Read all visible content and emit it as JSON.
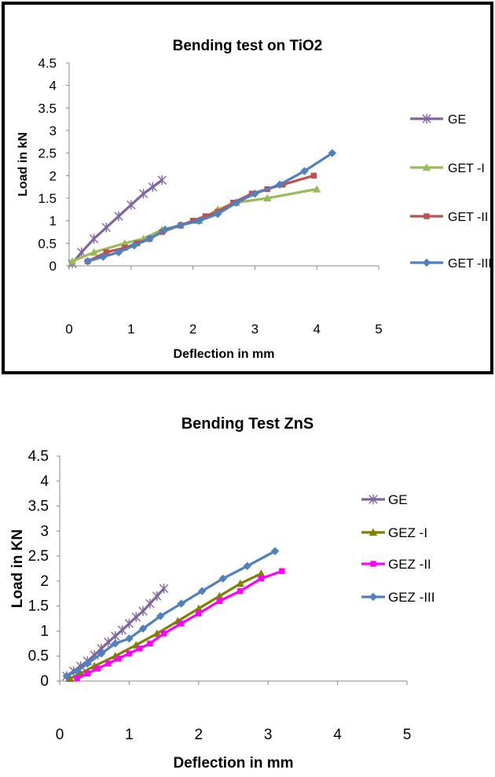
{
  "chart_data": [
    {
      "type": "line",
      "title": "Bending test on TiO2",
      "xlabel": "Deflection in mm",
      "ylabel": "Load in kN",
      "xlim": [
        0,
        5
      ],
      "ylim": [
        0,
        4.5
      ],
      "xticks": [
        "0",
        "1",
        "2",
        "3",
        "4",
        "5"
      ],
      "yticks": [
        "0",
        "0.5",
        "1",
        "1.5",
        "2",
        "2.5",
        "3",
        "3.5",
        "4",
        "4.5"
      ],
      "grid": false,
      "legend_position": "right",
      "series": [
        {
          "name": "GE",
          "color": "#8064a2",
          "marker": "x",
          "x": [
            0.05,
            0.2,
            0.4,
            0.6,
            0.8,
            1.0,
            1.2,
            1.35,
            1.5
          ],
          "y": [
            0.05,
            0.3,
            0.6,
            0.85,
            1.1,
            1.35,
            1.6,
            1.75,
            1.9
          ]
        },
        {
          "name": "GET -I",
          "color": "#9bbb59",
          "marker": "triangle",
          "x": [
            0.05,
            0.4,
            0.9,
            1.2,
            1.5,
            1.8,
            2.1,
            2.4,
            2.7,
            3.2,
            4.0
          ],
          "y": [
            0.1,
            0.3,
            0.5,
            0.6,
            0.8,
            0.9,
            1.0,
            1.25,
            1.4,
            1.5,
            1.7
          ]
        },
        {
          "name": "GET -II",
          "color": "#c0504d",
          "marker": "square",
          "x": [
            0.3,
            0.6,
            0.9,
            1.1,
            1.3,
            1.5,
            1.8,
            2.0,
            2.2,
            2.4,
            2.65,
            2.95,
            3.2,
            3.45,
            3.95
          ],
          "y": [
            0.1,
            0.3,
            0.4,
            0.5,
            0.6,
            0.75,
            0.9,
            1.0,
            1.1,
            1.2,
            1.4,
            1.6,
            1.7,
            1.8,
            2.0
          ]
        },
        {
          "name": "GET -III",
          "color": "#4f81be",
          "marker": "diamond",
          "x": [
            0.3,
            0.55,
            0.8,
            1.05,
            1.3,
            1.55,
            1.8,
            2.1,
            2.4,
            2.7,
            3.0,
            3.4,
            3.8,
            4.25
          ],
          "y": [
            0.1,
            0.2,
            0.3,
            0.45,
            0.6,
            0.8,
            0.9,
            1.0,
            1.15,
            1.4,
            1.6,
            1.8,
            2.1,
            2.5
          ]
        }
      ]
    },
    {
      "type": "line",
      "title": "Bending Test ZnS",
      "xlabel": "Deflection in mm",
      "ylabel": "Load in KN",
      "xlim": [
        0,
        5
      ],
      "ylim": [
        0,
        4.5
      ],
      "xticks": [
        "0",
        "1",
        "2",
        "3",
        "4",
        "5"
      ],
      "yticks": [
        "0",
        "0.5",
        "1",
        "1.5",
        "2",
        "2.5",
        "3",
        "3.5",
        "4",
        "4.5"
      ],
      "grid": false,
      "legend_position": "right",
      "series": [
        {
          "name": "GE",
          "color": "#8064a2",
          "marker": "x",
          "x": [
            0.1,
            0.2,
            0.3,
            0.4,
            0.5,
            0.6,
            0.7,
            0.8,
            0.9,
            1.0,
            1.1,
            1.2,
            1.3,
            1.4,
            1.5
          ],
          "y": [
            0.1,
            0.2,
            0.3,
            0.4,
            0.52,
            0.65,
            0.78,
            0.9,
            1.02,
            1.15,
            1.28,
            1.4,
            1.55,
            1.7,
            1.85
          ]
        },
        {
          "name": "GEZ -I",
          "color": "#7f7f00",
          "marker": "triangle",
          "x": [
            0.15,
            0.3,
            0.5,
            0.8,
            1.1,
            1.4,
            1.7,
            2.0,
            2.3,
            2.6,
            2.9
          ],
          "y": [
            0.05,
            0.15,
            0.3,
            0.5,
            0.72,
            0.95,
            1.2,
            1.45,
            1.7,
            1.95,
            2.15
          ]
        },
        {
          "name": "GEZ -II",
          "color": "#ff00ff",
          "marker": "square",
          "x": [
            0.25,
            0.4,
            0.55,
            0.7,
            0.85,
            1.0,
            1.15,
            1.3,
            1.5,
            1.75,
            2.0,
            2.3,
            2.6,
            2.9,
            3.2
          ],
          "y": [
            0.05,
            0.15,
            0.25,
            0.35,
            0.45,
            0.55,
            0.65,
            0.75,
            0.95,
            1.15,
            1.35,
            1.6,
            1.8,
            2.05,
            2.2
          ]
        },
        {
          "name": "GEZ -III",
          "color": "#4f81be",
          "marker": "diamond",
          "x": [
            0.1,
            0.25,
            0.4,
            0.6,
            0.8,
            1.0,
            1.2,
            1.45,
            1.75,
            2.05,
            2.35,
            2.7,
            3.1
          ],
          "y": [
            0.1,
            0.2,
            0.35,
            0.55,
            0.75,
            0.85,
            1.05,
            1.3,
            1.55,
            1.8,
            2.05,
            2.3,
            2.6
          ]
        }
      ]
    }
  ]
}
